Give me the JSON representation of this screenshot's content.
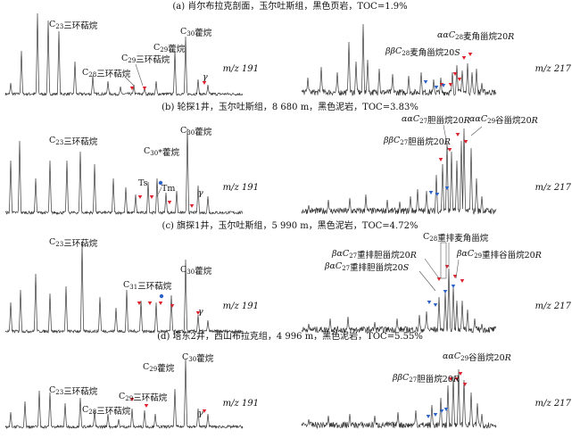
{
  "chart_data": [
    {
      "type": "chromatogram",
      "panel": "a",
      "title": "(a) 肖尔布拉克剖面，玉尔吐斯组，黑色页岩，TOC=1.9%",
      "ions": [
        "m/z 191",
        "m/z 217"
      ],
      "labels_191": [
        {
          "text": "C23三环萜烷",
          "peak": "C23-tricyclic"
        },
        {
          "text": "C28三环萜烷",
          "peak": "C28-tricyclic"
        },
        {
          "text": "C29三环萜烷",
          "peak": "C29-tricyclic"
        },
        {
          "text": "C29藿烷",
          "peak": "C29-hopane"
        },
        {
          "text": "C30藿烷",
          "peak": "C30-hopane"
        },
        {
          "text": "γ",
          "peak": "gammacerane"
        }
      ],
      "labels_217": [
        {
          "text": "ββC28麦角甾烷20S",
          "peak": "bbC28-20S"
        },
        {
          "text": "ααC28麦角甾烷20R",
          "peak": "aaC28-20R"
        }
      ]
    },
    {
      "type": "chromatogram",
      "panel": "b",
      "title": "(b) 轮探1井，玉尔吐斯组，8 680 m，黑色泥岩，TOC=3.83%",
      "ions": [
        "m/z 191",
        "m/z 217"
      ],
      "labels_191": [
        {
          "text": "C23三环萜烷",
          "peak": "C23-tricyclic"
        },
        {
          "text": "C30*藿烷",
          "peak": "C30*-hopane"
        },
        {
          "text": "Ts",
          "peak": "Ts"
        },
        {
          "text": "Tm",
          "peak": "Tm"
        },
        {
          "text": "C30藿烷",
          "peak": "C30-hopane"
        },
        {
          "text": "γ",
          "peak": "gammacerane"
        }
      ],
      "labels_217": [
        {
          "text": "ααC27胆甾烷20R",
          "peak": "aaC27-20R"
        },
        {
          "text": "ββC27胆甾烷20R",
          "peak": "bbC27-20R"
        },
        {
          "text": "ααC29谷甾烷20R",
          "peak": "aaC29-20R"
        }
      ]
    },
    {
      "type": "chromatogram",
      "panel": "c",
      "title": "(c) 旗探1井，玉尔吐斯组，5 990 m，黑色泥岩，TOC=4.72%",
      "ions": [
        "m/z 191",
        "m/z 217"
      ],
      "labels_191": [
        {
          "text": "C23三环萜烷",
          "peak": "C23-tricyclic"
        },
        {
          "text": "C31三环萜烷",
          "peak": "C31-tricyclic"
        },
        {
          "text": "C30藿烷",
          "peak": "C30-hopane"
        },
        {
          "text": "γ",
          "peak": "gammacerane"
        }
      ],
      "labels_217": [
        {
          "text": "C28重排麦角甾烷",
          "peak": "C28-diasterane"
        },
        {
          "text": "βαC27重排胆甾烷20R",
          "peak": "baC27-20R"
        },
        {
          "text": "βαC29重排谷甾烷20R",
          "peak": "baC29-20R"
        },
        {
          "text": "βαC27重排胆甾烷20S",
          "peak": "baC27-20S"
        }
      ]
    },
    {
      "type": "chromatogram",
      "panel": "d",
      "title": "(d) 塔东2井，西山布拉克组，4 996 m，黑色泥岩，TOC=5.55%",
      "ions": [
        "m/z 191",
        "m/z 217"
      ],
      "labels_191": [
        {
          "text": "C23三环萜烷",
          "peak": "C23-tricyclic"
        },
        {
          "text": "C28三环萜烷",
          "peak": "C28-tricyclic"
        },
        {
          "text": "C29三环萜烷",
          "peak": "C29-tricyclic"
        },
        {
          "text": "C29藿烷",
          "peak": "C29-hopane"
        },
        {
          "text": "C30藿烷",
          "peak": "C30-hopane"
        },
        {
          "text": "γ",
          "peak": "gammacerane"
        }
      ],
      "labels_217": [
        {
          "text": "ααC29谷甾烷20R",
          "peak": "aaC29-20R"
        },
        {
          "text": "ββC27胆甾烷20R",
          "peak": "bbC27-20R"
        }
      ]
    }
  ],
  "colors": {
    "trace": "#3a3a3a",
    "red_marker": "#e0202a",
    "blue_marker": "#2a62c8"
  }
}
